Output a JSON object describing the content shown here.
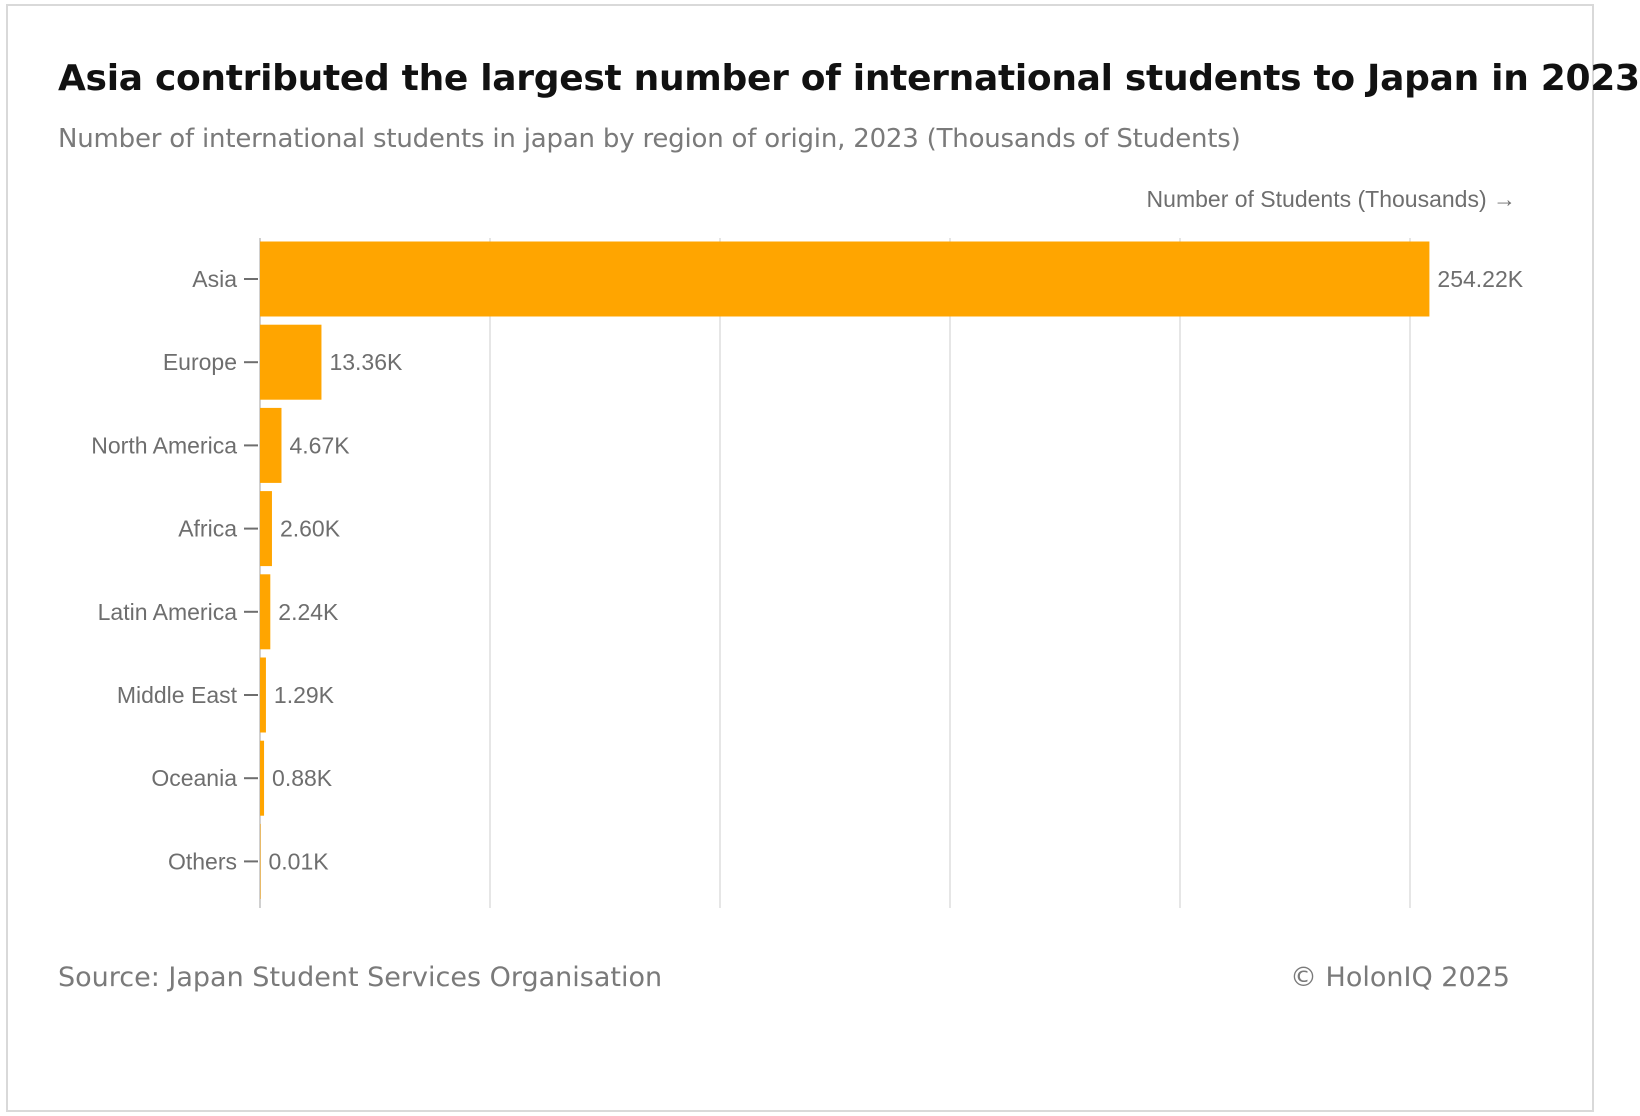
{
  "chart_data": {
    "type": "bar",
    "orientation": "horizontal",
    "title": "Asia contributed the largest number of international students to Japan in 2023",
    "subtitle": "Number of international students in japan by region of origin, 2023 (Thousands of Students)",
    "xlabel": "Number of Students (Thousands) →",
    "ylabel": "",
    "categories": [
      "Asia",
      "Europe",
      "North America",
      "Africa",
      "Latin America",
      "Middle East",
      "Oceania",
      "Others"
    ],
    "values": [
      254.22,
      13.36,
      4.67,
      2.6,
      2.24,
      1.29,
      0.88,
      0.01
    ],
    "value_labels": [
      "254.22K",
      "13.36K",
      "4.67K",
      "2.60K",
      "2.24K",
      "1.29K",
      "0.88K",
      "0.01K"
    ],
    "xlim": [
      0,
      250
    ],
    "grid_step": 50,
    "grid": true,
    "bar_color": "#ffa500",
    "grid_color": "#e6e6e6",
    "label_color": "#6e6e6e"
  },
  "footer": {
    "source": "Source: Japan Student Services Organisation",
    "credit": "© HolonIQ 2025"
  }
}
